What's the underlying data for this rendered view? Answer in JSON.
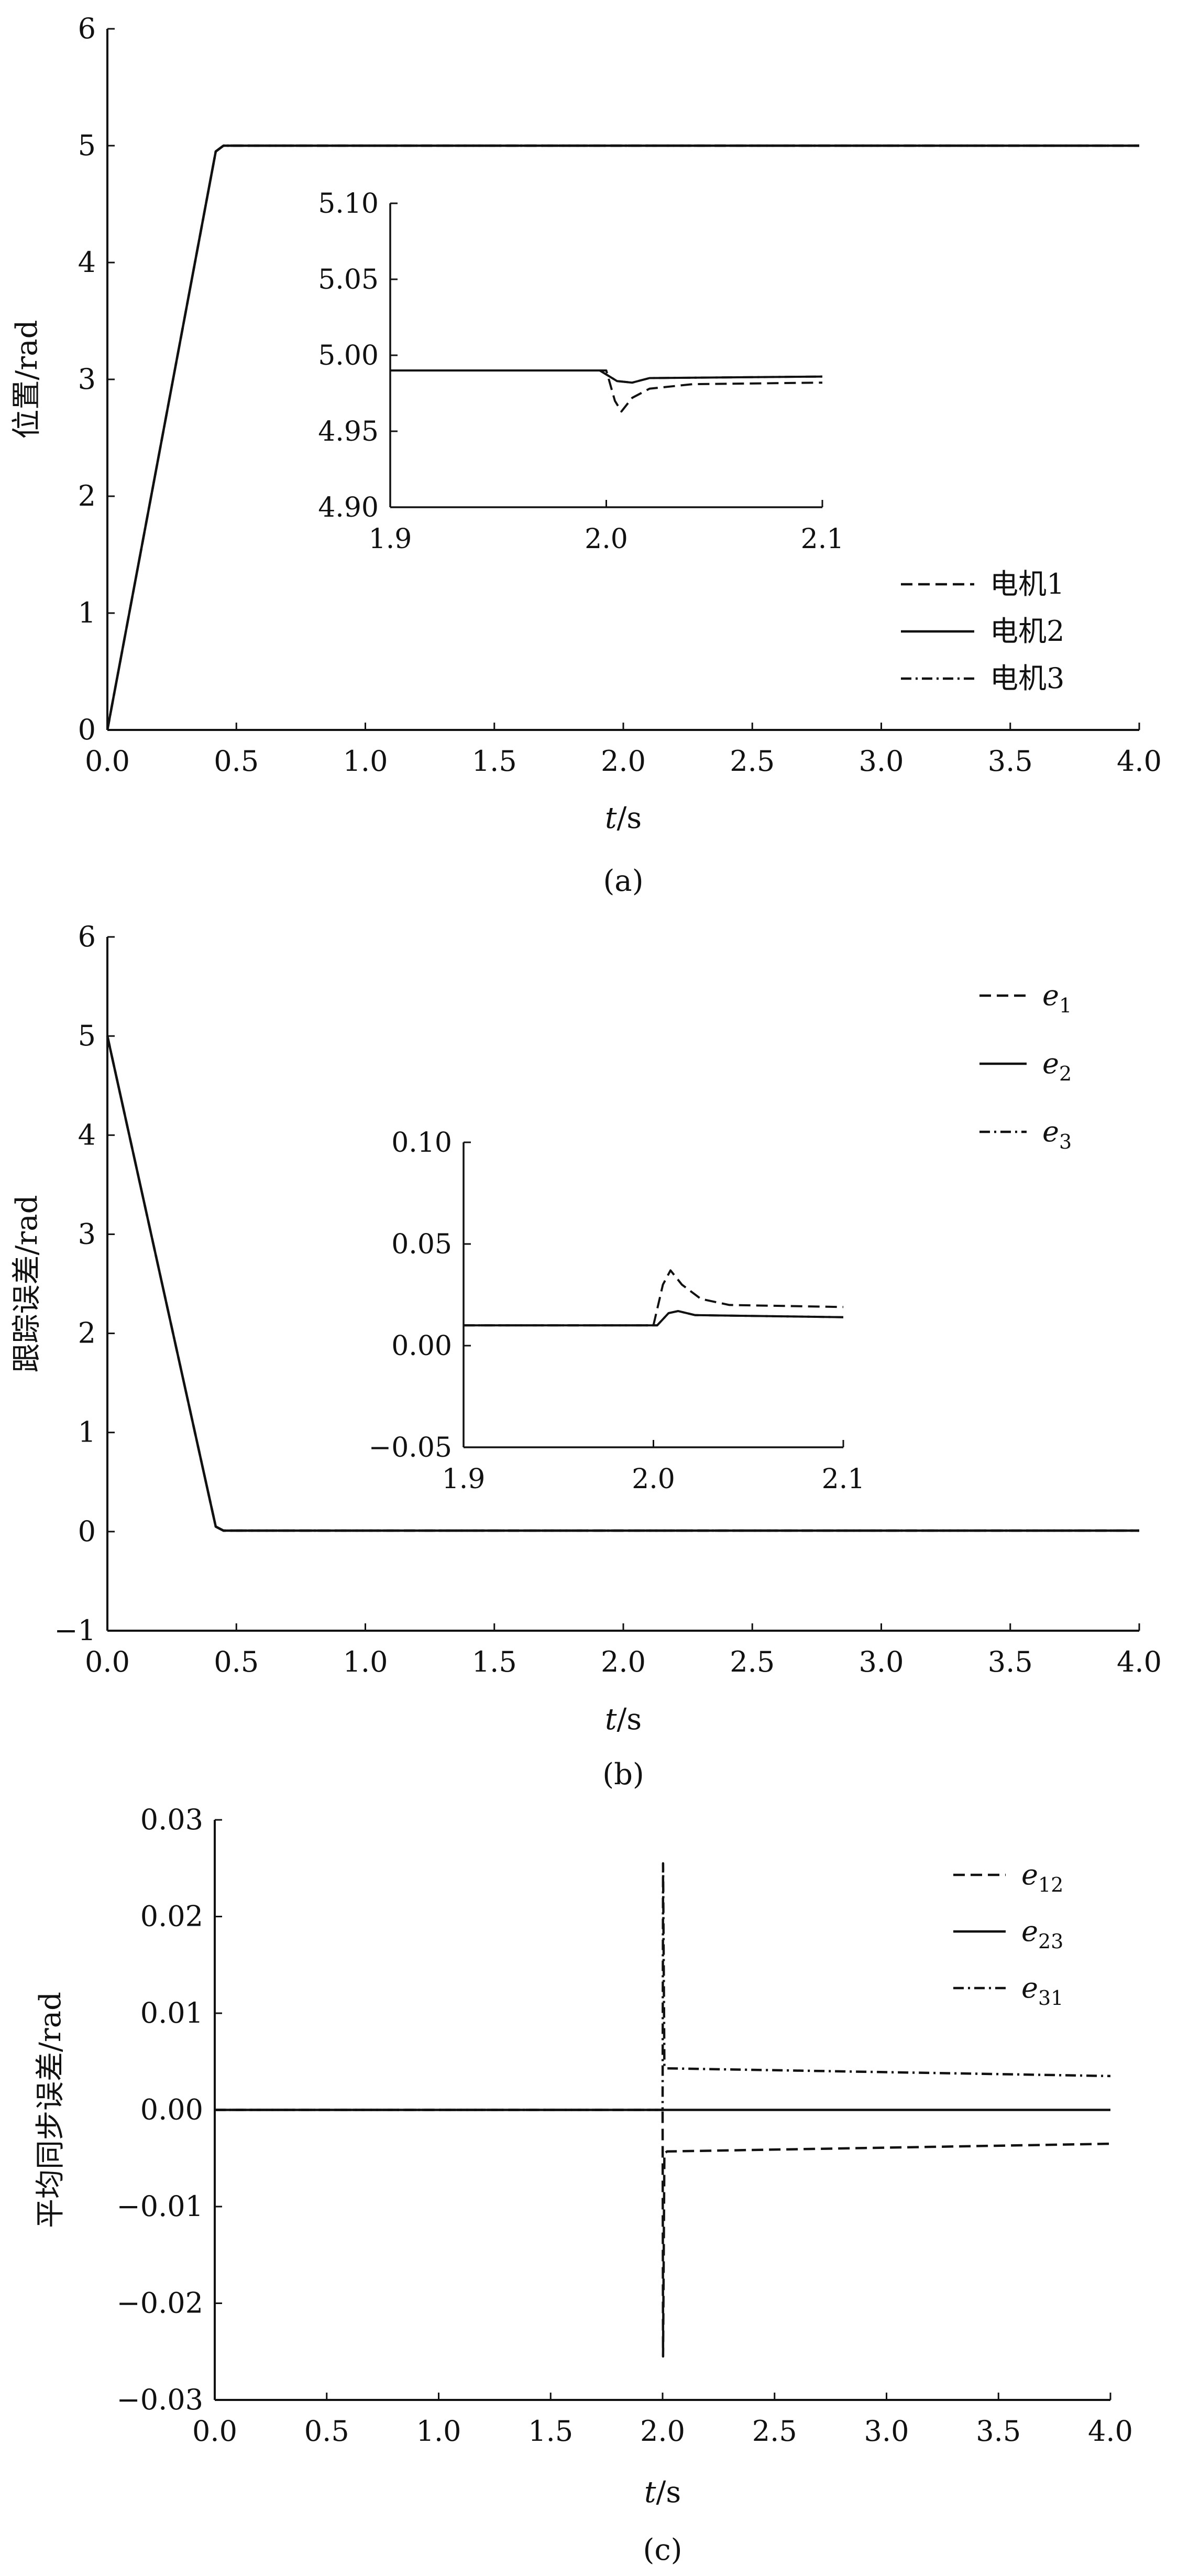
{
  "chart_data": [
    {
      "type": "line",
      "caption": "(a)",
      "xlabel_var": "t",
      "xlabel_unit": "/s",
      "ylabel": "位置/rad",
      "xlim": [
        0,
        4.0
      ],
      "ylim": [
        0,
        6
      ],
      "xticks": [
        "0.0",
        "0.5",
        "1.0",
        "1.5",
        "2.0",
        "2.5",
        "3.0",
        "3.5",
        "4.0"
      ],
      "yticks": [
        "0",
        "1",
        "2",
        "3",
        "4",
        "5",
        "6"
      ],
      "legend_position": "bottom-right",
      "series": [
        {
          "name": "电机1",
          "style": "dashed",
          "x": [
            0,
            0.42,
            0.45,
            4.0
          ],
          "y": [
            0,
            4.95,
            5.0,
            5.0
          ]
        },
        {
          "name": "电机2",
          "style": "solid",
          "x": [
            0,
            0.42,
            0.45,
            4.0
          ],
          "y": [
            0,
            4.95,
            5.0,
            5.0
          ]
        },
        {
          "name": "电机3",
          "style": "dashdot",
          "x": [
            0,
            0.42,
            0.45,
            4.0
          ],
          "y": [
            0,
            4.95,
            5.0,
            5.0
          ]
        }
      ],
      "inset": {
        "xlim": [
          1.9,
          2.1
        ],
        "ylim": [
          4.9,
          5.1
        ],
        "xticks": [
          "1.9",
          "2.0",
          "2.1"
        ],
        "yticks": [
          "4.90",
          "4.95",
          "5.00",
          "5.05",
          "5.10"
        ],
        "series": [
          {
            "name": "电机1",
            "style": "dashed",
            "x": [
              1.9,
              2.0,
              2.004,
              2.007,
              2.012,
              2.02,
              2.04,
              2.1
            ],
            "y": [
              4.99,
              4.99,
              4.97,
              4.963,
              4.972,
              4.978,
              4.981,
              4.982
            ]
          },
          {
            "name": "电机2",
            "style": "solid",
            "x": [
              1.9,
              1.997,
              2.005,
              2.012,
              2.02,
              2.1
            ],
            "y": [
              4.99,
              4.99,
              4.983,
              4.982,
              4.985,
              4.986
            ]
          },
          {
            "name": "电机3",
            "style": "dashdot",
            "x": [
              1.9,
              1.997,
              2.005,
              2.012,
              2.02,
              2.1
            ],
            "y": [
              4.99,
              4.99,
              4.983,
              4.982,
              4.985,
              4.986
            ]
          }
        ]
      }
    },
    {
      "type": "line",
      "caption": "(b)",
      "xlabel_var": "t",
      "xlabel_unit": "/s",
      "ylabel": "跟踪误差/rad",
      "xlim": [
        0,
        4.0
      ],
      "ylim": [
        -1,
        6
      ],
      "xticks": [
        "0.0",
        "0.5",
        "1.0",
        "1.5",
        "2.0",
        "2.5",
        "3.0",
        "3.5",
        "4.0"
      ],
      "yticks": [
        "−1",
        "0",
        "1",
        "2",
        "3",
        "4",
        "5",
        "6"
      ],
      "legend_position": "top-right",
      "series": [
        {
          "name": "e",
          "sub": "1",
          "style": "dashed",
          "x": [
            0,
            0.42,
            0.45,
            4.0
          ],
          "y": [
            5.0,
            0.05,
            0.01,
            0.01
          ]
        },
        {
          "name": "e",
          "sub": "2",
          "style": "solid",
          "x": [
            0,
            0.42,
            0.45,
            4.0
          ],
          "y": [
            5.0,
            0.05,
            0.01,
            0.01
          ]
        },
        {
          "name": "e",
          "sub": "3",
          "style": "dashdot",
          "x": [
            0,
            0.42,
            0.45,
            4.0
          ],
          "y": [
            5.0,
            0.05,
            0.01,
            0.01
          ]
        }
      ],
      "inset": {
        "xlim": [
          1.9,
          2.1
        ],
        "ylim": [
          -0.05,
          0.1
        ],
        "xticks": [
          "1.9",
          "2.0",
          "2.1"
        ],
        "yticks": [
          "0.10",
          "0.05",
          "0.00",
          "−0.05"
        ],
        "series": [
          {
            "name": "e",
            "sub": "1",
            "style": "dashed",
            "x": [
              1.9,
              2.0,
              2.005,
              2.009,
              2.015,
              2.025,
              2.04,
              2.1
            ],
            "y": [
              0.01,
              0.01,
              0.03,
              0.037,
              0.03,
              0.023,
              0.02,
              0.019
            ]
          },
          {
            "name": "e",
            "sub": "2",
            "style": "solid",
            "x": [
              1.9,
              2.002,
              2.008,
              2.013,
              2.022,
              2.1
            ],
            "y": [
              0.01,
              0.01,
              0.016,
              0.017,
              0.015,
              0.014
            ]
          },
          {
            "name": "e",
            "sub": "3",
            "style": "dashdot",
            "x": [
              1.9,
              2.002,
              2.008,
              2.013,
              2.022,
              2.1
            ],
            "y": [
              0.01,
              0.01,
              0.016,
              0.017,
              0.015,
              0.014
            ]
          }
        ]
      }
    },
    {
      "type": "line",
      "caption": "(c)",
      "xlabel_var": "t",
      "xlabel_unit": "/s",
      "ylabel": "平均同步误差/rad",
      "xlim": [
        0,
        4.0
      ],
      "ylim": [
        -0.03,
        0.03
      ],
      "xticks": [
        "0.0",
        "0.5",
        "1.0",
        "1.5",
        "2.0",
        "2.5",
        "3.0",
        "3.5",
        "4.0"
      ],
      "yticks": [
        "0.03",
        "0.02",
        "0.01",
        "0.00",
        "−0.01",
        "−0.02",
        "−0.03"
      ],
      "legend_position": "top-right",
      "series": [
        {
          "name": "e",
          "sub": "12",
          "style": "dashed",
          "x": [
            0,
            2.0,
            2.002,
            2.008,
            2.02,
            4.0
          ],
          "y": [
            0,
            0,
            -0.0255,
            -0.0045,
            -0.0043,
            -0.0035
          ]
        },
        {
          "name": "e",
          "sub": "23",
          "style": "solid",
          "x": [
            0,
            4.0
          ],
          "y": [
            0,
            0
          ]
        },
        {
          "name": "e",
          "sub": "31",
          "style": "dashdot",
          "x": [
            0,
            2.0,
            2.002,
            2.008,
            2.02,
            4.0
          ],
          "y": [
            0,
            0,
            0.0255,
            0.0045,
            0.0043,
            0.0035
          ]
        }
      ]
    }
  ]
}
